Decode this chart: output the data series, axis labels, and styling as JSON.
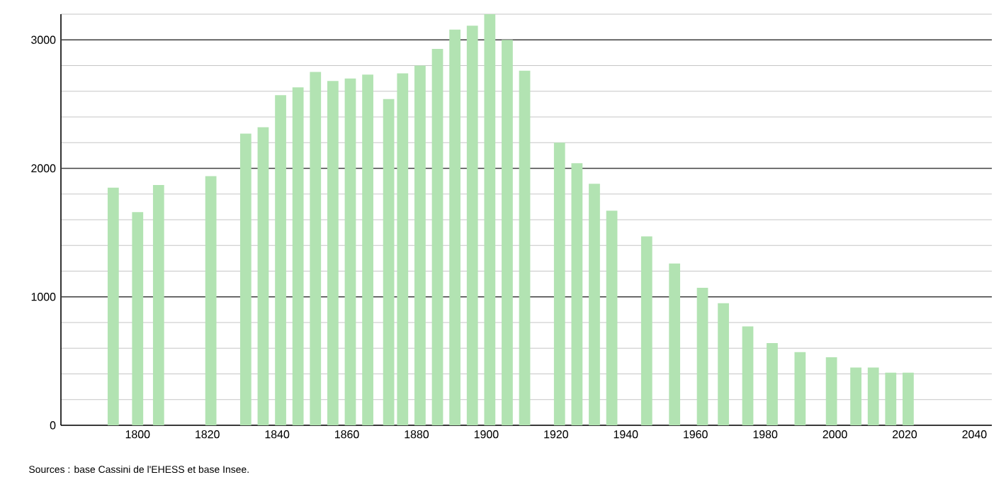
{
  "chart_data": {
    "type": "bar",
    "x": [
      1793,
      1800,
      1806,
      1821,
      1831,
      1836,
      1841,
      1846,
      1851,
      1856,
      1861,
      1866,
      1872,
      1876,
      1881,
      1886,
      1891,
      1896,
      1901,
      1906,
      1911,
      1921,
      1926,
      1931,
      1936,
      1946,
      1954,
      1962,
      1968,
      1975,
      1982,
      1990,
      1999,
      2006,
      2011,
      2016,
      2021
    ],
    "values": [
      1850,
      1660,
      1870,
      1940,
      2270,
      2320,
      2570,
      2630,
      2750,
      2680,
      2700,
      2730,
      2540,
      2740,
      2800,
      2930,
      3080,
      3110,
      3200,
      3000,
      2760,
      2200,
      2040,
      1880,
      1670,
      1470,
      1260,
      1070,
      950,
      770,
      640,
      570,
      530,
      450,
      450,
      410,
      410
    ],
    "color": "#b2e3b2",
    "xlim": [
      1778,
      2045
    ],
    "ylim": [
      0,
      3200
    ],
    "xticks": [
      1800,
      1820,
      1840,
      1860,
      1880,
      1900,
      1920,
      1940,
      1960,
      1980,
      2000,
      2020,
      2040
    ],
    "yticks": [
      0,
      {
        "value": 200,
        "label": null
      },
      {
        "value": 400,
        "label": null
      },
      {
        "value": 600,
        "label": null
      },
      {
        "value": 800,
        "label": null
      },
      1000,
      {
        "value": 1200,
        "label": null
      },
      {
        "value": 1400,
        "label": null
      },
      {
        "value": 1600,
        "label": null
      },
      {
        "value": 1800,
        "label": null
      },
      2000,
      {
        "value": 2200,
        "label": null
      },
      {
        "value": 2400,
        "label": null
      },
      {
        "value": 2600,
        "label": null
      },
      {
        "value": 2800,
        "label": null
      },
      3000,
      {
        "value": 3200,
        "label": null
      }
    ],
    "grid": "y",
    "annotations": [
      "Sources : base Cassini de l'EHESS et base Insee."
    ]
  }
}
